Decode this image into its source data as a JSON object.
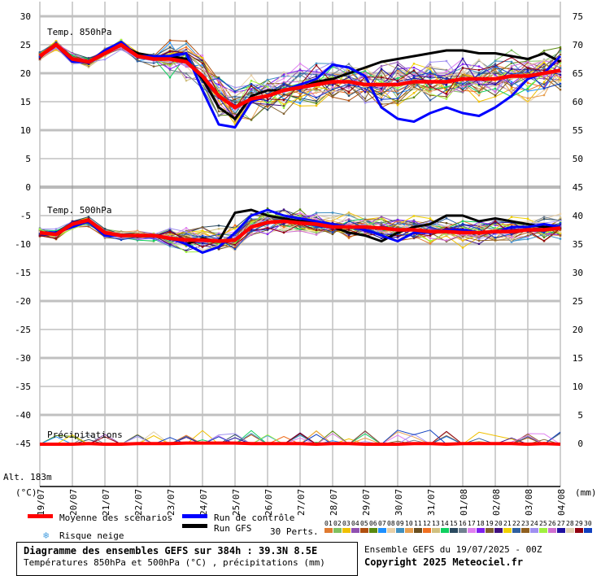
{
  "chart_data": {
    "type": "line",
    "title": "Diagramme des ensembles GEFS sur 384h : 39.3N 8.5E",
    "subtitle": "Températures 850hPa et 500hPa (°C) , précipitations (mm)",
    "run_info": "Ensemble GEFS du 19/07/2025 - 00Z",
    "copyright": "Copyright 2025 Meteociel.fr",
    "altitude": "Alt. 183m",
    "left_unit": "(°C)",
    "right_unit": "(mm)",
    "x_labels": [
      "19/07",
      "20/07",
      "21/07",
      "22/07",
      "23/07",
      "24/07",
      "25/07",
      "26/07",
      "27/07",
      "28/07",
      "29/07",
      "30/07",
      "31/07",
      "01/08",
      "02/08",
      "03/08",
      "04/08"
    ],
    "x_step_hours": 12,
    "left_ticks": [
      "30",
      "25",
      "20",
      "15",
      "10",
      "5",
      "0",
      "-5",
      "-10",
      "-15",
      "-20",
      "-25",
      "-30",
      "-35",
      "-40",
      "-45"
    ],
    "right_ticks": [
      "75",
      "70",
      "65",
      "60",
      "55",
      "50",
      "45",
      "40",
      "35",
      "30",
      "25",
      "20",
      "15",
      "10",
      "5",
      "0"
    ],
    "ylim_temp": [
      -52,
      30
    ],
    "panels": [
      {
        "name": "Temp. 850hPa",
        "mean": [
          23,
          25,
          22.5,
          22,
          23.5,
          25,
          23,
          22.5,
          22.5,
          22,
          19.5,
          16,
          14,
          15.5,
          16,
          17,
          17.5,
          18,
          18.5,
          18.5,
          18,
          18,
          18,
          18.5,
          18.5,
          18.5,
          19,
          19,
          19,
          19.5,
          19.5,
          20,
          20.5
        ],
        "control": [
          23,
          25,
          22,
          22,
          24,
          25.5,
          23,
          23,
          23,
          23.5,
          17,
          11,
          10.5,
          15,
          16,
          17,
          18,
          19,
          21.5,
          21,
          19.5,
          14,
          12,
          11.5,
          13,
          14,
          13,
          12.5,
          14,
          16,
          19,
          20,
          23
        ],
        "gfs": [
          23,
          25,
          22,
          22,
          23.5,
          25,
          23.5,
          23,
          23,
          22.5,
          19,
          14,
          12,
          16,
          17,
          17,
          17.5,
          18.5,
          19,
          20,
          21,
          22,
          22.5,
          23,
          23.5,
          24,
          24,
          23.5,
          23.5,
          23,
          22.5,
          23.5,
          22
        ]
      },
      {
        "name": "Temp. 500hPa",
        "mean": [
          -8,
          -8.3,
          -6.5,
          -5.8,
          -8,
          -8.5,
          -8.5,
          -8.5,
          -9,
          -9.3,
          -9.3,
          -9.5,
          -9.3,
          -7,
          -6.2,
          -6,
          -6.3,
          -6.5,
          -7,
          -7,
          -7,
          -7.2,
          -7.5,
          -7.5,
          -7.8,
          -7.8,
          -8,
          -8,
          -7.8,
          -7.8,
          -7.5,
          -7.5,
          -7.2
        ],
        "control": [
          -8,
          -8,
          -7,
          -6,
          -8.5,
          -8.5,
          -8.5,
          -8.5,
          -9,
          -10,
          -11.5,
          -10.5,
          -8,
          -5,
          -4,
          -5,
          -5.5,
          -6,
          -6.5,
          -7,
          -7.5,
          -8.5,
          -9.5,
          -8,
          -8,
          -7.5,
          -7.5,
          -8,
          -8,
          -7,
          -7,
          -6.5,
          -7
        ],
        "gfs": [
          -8,
          -8,
          -7,
          -6,
          -8.5,
          -8.5,
          -8.5,
          -8.5,
          -9,
          -10,
          -9,
          -9.5,
          -4.5,
          -4,
          -5,
          -5.5,
          -6,
          -6,
          -7,
          -8,
          -8.5,
          -9.5,
          -8,
          -7,
          -6.5,
          -5,
          -5,
          -6,
          -5.5,
          -6,
          -6.5,
          -7,
          -7
        ]
      },
      {
        "name": "Précipitations",
        "unit": "mm",
        "mean": [
          0,
          0,
          0,
          0.1,
          0,
          0,
          0.1,
          0.1,
          0.1,
          0.2,
          0.2,
          0.2,
          0.2,
          0.1,
          0.1,
          0.1,
          0.1,
          0,
          0.1,
          0.1,
          0,
          0,
          0,
          0.1,
          0.1,
          0,
          0.1,
          0.1,
          0.1,
          0.1,
          0,
          0.1,
          0
        ]
      }
    ],
    "legend": {
      "mean": "Moyenne des scénarios",
      "control": "Run de contrôle",
      "gfs": "Run GFS",
      "snow": "Risque neige",
      "perts": "30 Perts.",
      "mean_color": "#ff0000",
      "control_color": "#0000ff",
      "gfs_color": "#000000"
    },
    "pert_ids": [
      "01",
      "02",
      "03",
      "04",
      "05",
      "06",
      "07",
      "08",
      "09",
      "10",
      "11",
      "12",
      "13",
      "14",
      "15",
      "16",
      "17",
      "18",
      "19",
      "20",
      "21",
      "22",
      "23",
      "24",
      "25",
      "26",
      "27",
      "28",
      "29",
      "30"
    ],
    "pert_colors": [
      "#e07b30",
      "#80c060",
      "#f0c000",
      "#9050b0",
      "#b05010",
      "#5a8a10",
      "#1e90ff",
      "#e8d0a8",
      "#4090c0",
      "#e8a050",
      "#6a5020",
      "#f07020",
      "#d0c080",
      "#10d060",
      "#2a4a60",
      "#708090",
      "#e080f0",
      "#8020f0",
      "#806030",
      "#401080",
      "#f0d000",
      "#3060a0",
      "#906020",
      "#a090f0",
      "#a0f040",
      "#d070d0",
      "#2010a0",
      "#e0d0b0",
      "#900010",
      "#1040c0"
    ]
  }
}
